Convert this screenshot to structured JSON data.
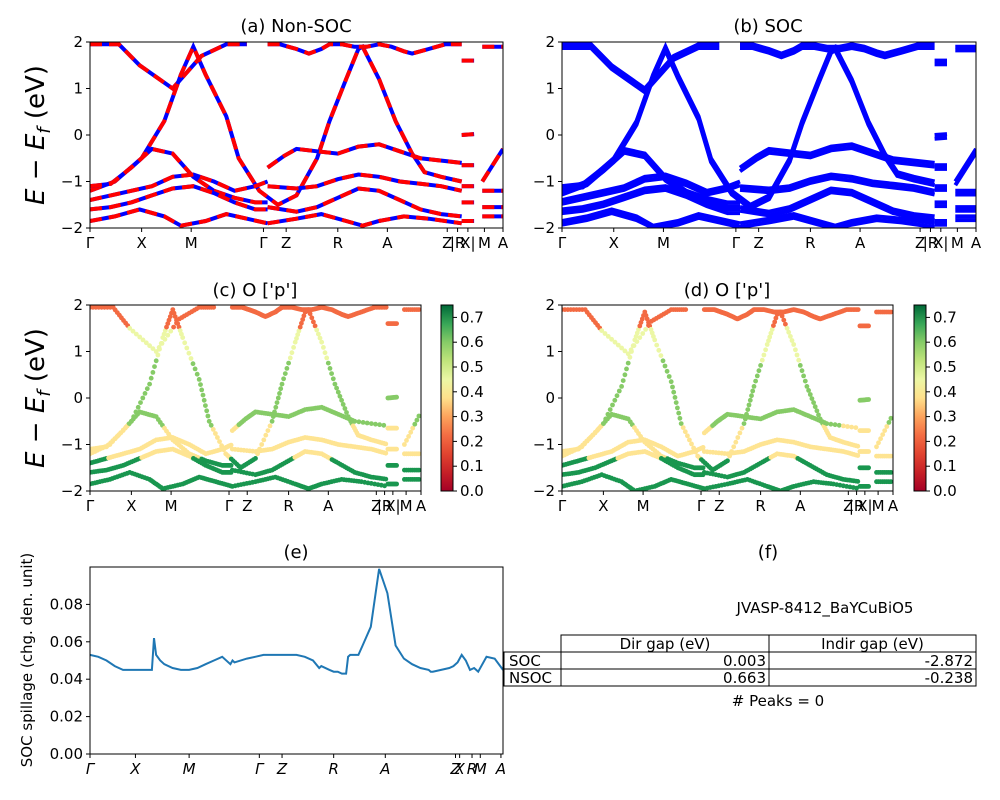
{
  "chart_data": [
    {
      "id": "a",
      "type": "line",
      "title": "(a) Non-SOC",
      "ylabel": "E − E_f (eV)",
      "ylim": [
        -2,
        2
      ],
      "yticks": [
        "−2",
        "−1",
        "0",
        "1",
        "2"
      ],
      "xticks": [
        "Γ",
        "X",
        "M",
        "Γ",
        "Z",
        "R",
        "A",
        "Z",
        "|R",
        "X|",
        "M",
        "A"
      ],
      "series_colors": [
        "#ff0000",
        "#0000ff"
      ],
      "linestyle": "dashed red over blue",
      "bands": [
        {
          "k": [
            0,
            0.07,
            0.12,
            0.2,
            0.27,
            0.33,
            0.38
          ],
          "e": [
            1.95,
            1.95,
            1.5,
            1.0,
            1.7,
            1.95,
            1.95
          ]
        },
        {
          "k": [
            0,
            0.06,
            0.125,
            0.18,
            0.22,
            0.25,
            0.28,
            0.33,
            0.36,
            0.41,
            0.455,
            0.5,
            0.55,
            0.58,
            0.62,
            0.65,
            0.66,
            0.7,
            0.74,
            0.78,
            0.81,
            0.85,
            0.9
          ],
          "e": [
            -1.2,
            -1.0,
            -0.5,
            0.3,
            1.3,
            1.9,
            1.3,
            0.4,
            -0.5,
            -1.2,
            -1.5,
            -1.3,
            -0.5,
            0.3,
            1.2,
            1.85,
            1.9,
            1.2,
            0.3,
            -0.4,
            -0.8,
            -0.9,
            -1.0
          ]
        },
        {
          "k": [
            0,
            0.05,
            0.1,
            0.15,
            0.2,
            0.25,
            0.3,
            0.35,
            0.4,
            0.43
          ],
          "e": [
            -1.1,
            -1.05,
            -0.7,
            -0.3,
            -0.4,
            -0.9,
            -1.2,
            -1.35,
            -1.45,
            -1.45
          ]
        },
        {
          "k": [
            0.43,
            0.47,
            0.5,
            0.55,
            0.6,
            0.65,
            0.7,
            0.75,
            0.8,
            0.9
          ],
          "e": [
            -0.7,
            -0.45,
            -0.3,
            -0.35,
            -0.4,
            -0.25,
            -0.2,
            -0.35,
            -0.5,
            -0.6
          ]
        },
        {
          "k": [
            0,
            0.05,
            0.1,
            0.15,
            0.2,
            0.25,
            0.3,
            0.35,
            0.4,
            0.43
          ],
          "e": [
            -1.4,
            -1.3,
            -1.2,
            -1.1,
            -0.9,
            -0.85,
            -1.0,
            -1.2,
            -1.1,
            -1.0
          ]
        },
        {
          "k": [
            0.43,
            0.5,
            0.55,
            0.6,
            0.65,
            0.7,
            0.75,
            0.8,
            0.85,
            0.9
          ],
          "e": [
            -1.1,
            -1.15,
            -1.1,
            -0.95,
            -0.85,
            -0.9,
            -1.0,
            -1.05,
            -1.1,
            -1.2
          ]
        },
        {
          "k": [
            0,
            0.05,
            0.1,
            0.15,
            0.2,
            0.25,
            0.3,
            0.35,
            0.4,
            0.43
          ],
          "e": [
            -1.6,
            -1.55,
            -1.45,
            -1.3,
            -1.15,
            -1.1,
            -1.25,
            -1.45,
            -1.6,
            -1.6
          ]
        },
        {
          "k": [
            0.43,
            0.5,
            0.55,
            0.6,
            0.65,
            0.7,
            0.75,
            0.8,
            0.85,
            0.9
          ],
          "e": [
            -1.55,
            -1.65,
            -1.55,
            -1.35,
            -1.15,
            -1.2,
            -1.4,
            -1.6,
            -1.7,
            -1.75
          ]
        },
        {
          "k": [
            0,
            0.06,
            0.12,
            0.18,
            0.22,
            0.28,
            0.33,
            0.38,
            0.43
          ],
          "e": [
            -1.85,
            -1.75,
            -1.6,
            -1.75,
            -1.95,
            -1.85,
            -1.7,
            -1.8,
            -1.9
          ]
        },
        {
          "k": [
            0.43,
            0.5,
            0.56,
            0.62,
            0.66,
            0.7,
            0.76,
            0.82,
            0.9
          ],
          "e": [
            -1.9,
            -1.8,
            -1.7,
            -1.85,
            -1.95,
            -1.85,
            -1.75,
            -1.8,
            -1.9
          ]
        },
        {
          "k": [
            0.43,
            0.46,
            0.48,
            0.5,
            0.53,
            0.56,
            0.58,
            0.61,
            0.64,
            0.67,
            0.7,
            0.73,
            0.76,
            0.78,
            0.82,
            0.86,
            0.9
          ],
          "e": [
            1.95,
            1.95,
            1.9,
            1.85,
            1.75,
            1.85,
            1.95,
            1.95,
            1.9,
            1.9,
            1.95,
            1.9,
            1.8,
            1.75,
            1.85,
            1.95,
            1.95
          ]
        }
      ],
      "segments": [
        {
          "k": [
            0.9,
            0.93
          ],
          "e": [
            1.6,
            1.6
          ]
        },
        {
          "k": [
            0.9,
            0.93
          ],
          "e": [
            0.0,
            0.02
          ]
        },
        {
          "k": [
            0.9,
            0.93
          ],
          "e": [
            -0.65,
            -0.65
          ]
        },
        {
          "k": [
            0.9,
            0.93
          ],
          "e": [
            -1.1,
            -1.1
          ]
        },
        {
          "k": [
            0.9,
            0.93
          ],
          "e": [
            -1.45,
            -1.45
          ]
        },
        {
          "k": [
            0.9,
            0.93
          ],
          "e": [
            -1.85,
            -1.85
          ]
        },
        {
          "k": [
            0.95,
            1.0
          ],
          "e": [
            1.9,
            1.9
          ]
        },
        {
          "k": [
            0.95,
            1.0
          ],
          "e": [
            -1.0,
            -0.3
          ]
        },
        {
          "k": [
            0.95,
            1.0
          ],
          "e": [
            -1.2,
            -1.2
          ]
        },
        {
          "k": [
            0.95,
            1.0
          ],
          "e": [
            -1.55,
            -1.55
          ]
        },
        {
          "k": [
            0.95,
            1.0
          ],
          "e": [
            -1.75,
            -1.75
          ]
        }
      ]
    },
    {
      "id": "b",
      "type": "line",
      "title": "(b) SOC",
      "ylim": [
        -2,
        2
      ],
      "yticks": [
        "−2",
        "−1",
        "0",
        "1",
        "2"
      ],
      "xticks": [
        "Γ",
        "X",
        "M",
        "Γ",
        "Z",
        "R",
        "A",
        "Z",
        "|R",
        "X|",
        "M",
        "A"
      ],
      "series_colors": [
        "#0000ff"
      ],
      "linestyle": "solid blue, thick"
    },
    {
      "id": "c",
      "type": "scatter",
      "title": "(c)  O ['p']",
      "ylabel": "E − E_f (eV)",
      "ylim": [
        -2,
        2
      ],
      "yticks": [
        "−2",
        "−1",
        "0",
        "1",
        "2"
      ],
      "xticks": [
        "Γ",
        "X",
        "M",
        "Γ",
        "Z",
        "R",
        "A",
        "Z",
        "|R",
        "X|",
        "M",
        "A"
      ],
      "colorbar": {
        "colormap": "RdYlGn",
        "range": [
          0,
          0.75
        ],
        "ticks": [
          "0.0",
          "0.1",
          "0.2",
          "0.3",
          "0.4",
          "0.5",
          "0.6",
          "0.7"
        ]
      }
    },
    {
      "id": "d",
      "type": "scatter",
      "title": "(d) O ['p']",
      "ylim": [
        -2,
        2
      ],
      "yticks": [
        "−2",
        "−1",
        "0",
        "1",
        "2"
      ],
      "xticks": [
        "Γ",
        "X",
        "M",
        "Γ",
        "Z",
        "R",
        "A",
        "Z",
        "|R",
        "X|",
        "M",
        "A"
      ],
      "colorbar": {
        "colormap": "RdYlGn",
        "range": [
          0,
          0.75
        ],
        "ticks": [
          "0.0",
          "0.1",
          "0.2",
          "0.3",
          "0.4",
          "0.5",
          "0.6",
          "0.7"
        ]
      }
    },
    {
      "id": "e",
      "type": "line",
      "title": "(e)",
      "ylabel": "SOC spillage (chg. den. unit)",
      "ylim": [
        0,
        0.1
      ],
      "yticks": [
        "0.00",
        "0.02",
        "0.04",
        "0.06",
        "0.08"
      ],
      "xticks": [
        "Γ",
        "X",
        "M",
        "Γ",
        "Z",
        "R",
        "A",
        "Z",
        "X",
        "R",
        "M",
        "A"
      ],
      "series_color": "#1f77b4",
      "x": [
        0,
        0.02,
        0.04,
        0.06,
        0.08,
        0.1,
        0.12,
        0.14,
        0.15,
        0.155,
        0.16,
        0.17,
        0.18,
        0.2,
        0.22,
        0.24,
        0.26,
        0.28,
        0.3,
        0.32,
        0.34,
        0.345,
        0.35,
        0.38,
        0.4,
        0.42,
        0.44,
        0.46,
        0.48,
        0.5,
        0.52,
        0.54,
        0.555,
        0.56,
        0.58,
        0.59,
        0.6,
        0.61,
        0.62,
        0.625,
        0.63,
        0.64,
        0.65,
        0.66,
        0.68,
        0.7,
        0.72,
        0.74,
        0.76,
        0.78,
        0.8,
        0.82,
        0.825,
        0.83,
        0.85,
        0.87,
        0.88,
        0.89,
        0.9,
        0.91,
        0.92,
        0.93,
        0.935,
        0.94,
        0.96,
        0.98,
        1.0
      ],
      "y": [
        0.053,
        0.052,
        0.05,
        0.047,
        0.045,
        0.045,
        0.045,
        0.045,
        0.045,
        0.062,
        0.053,
        0.05,
        0.048,
        0.046,
        0.045,
        0.045,
        0.046,
        0.048,
        0.05,
        0.052,
        0.048,
        0.05,
        0.049,
        0.051,
        0.052,
        0.053,
        0.053,
        0.053,
        0.053,
        0.053,
        0.052,
        0.05,
        0.046,
        0.047,
        0.045,
        0.044,
        0.044,
        0.043,
        0.043,
        0.052,
        0.053,
        0.053,
        0.053,
        0.058,
        0.068,
        0.099,
        0.086,
        0.058,
        0.051,
        0.048,
        0.046,
        0.045,
        0.044,
        0.044,
        0.045,
        0.046,
        0.047,
        0.049,
        0.053,
        0.05,
        0.045,
        0.046,
        0.045,
        0.044,
        0.052,
        0.051,
        0.045
      ]
    }
  ],
  "panel_f": {
    "title": "(f)",
    "material": "JVASP-8412_BaYCuBiO5",
    "table": {
      "columns": [
        "",
        "Dir gap (eV)",
        "Indir gap (eV)"
      ],
      "rows": [
        [
          "SOC",
          "0.003",
          "-2.872"
        ],
        [
          "NSOC",
          "0.663",
          "-0.238"
        ]
      ]
    },
    "peaks": "# Peaks = 0"
  }
}
